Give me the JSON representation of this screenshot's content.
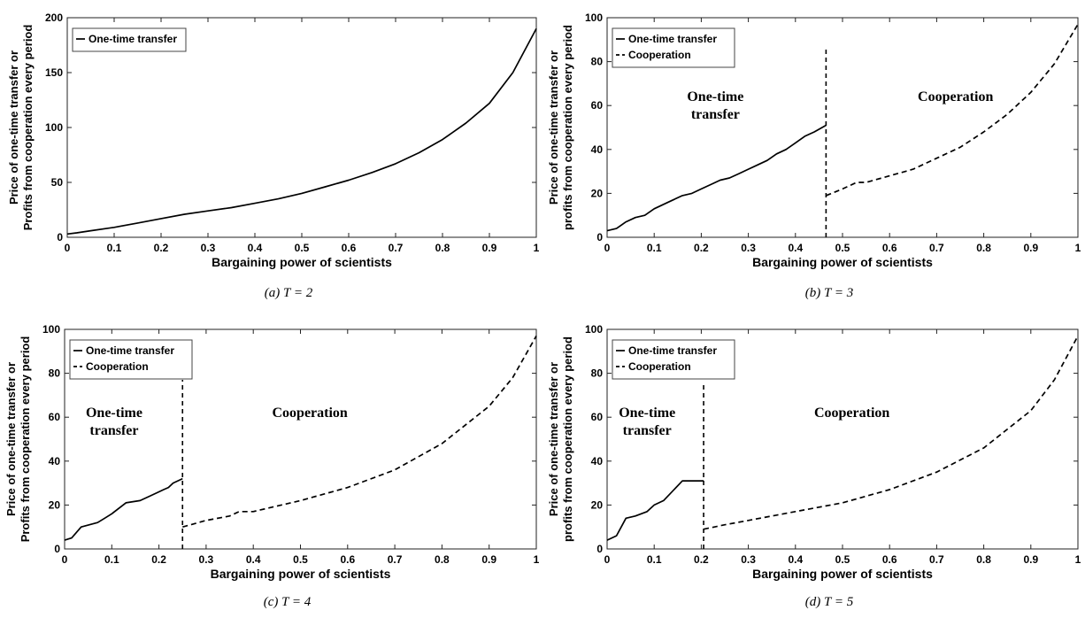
{
  "chart_data": [
    {
      "type": "line",
      "caption": "(a) T = 2",
      "xlabel": "Bargaining power of scientists",
      "ylabel_lines": [
        "Price of one-time transfer or",
        "Profits from cooperation every period"
      ],
      "xlim": [
        0,
        1
      ],
      "ylim": [
        0,
        200
      ],
      "xticks": [
        "0",
        "0.1",
        "0.2",
        "0.3",
        "0.4",
        "0.5",
        "0.6",
        "0.7",
        "0.8",
        "0.9",
        "1"
      ],
      "yticks": [
        "0",
        "50",
        "100",
        "150",
        "200"
      ],
      "legend": {
        "position": "top-left"
      },
      "annotations": [],
      "series": [
        {
          "name": "One-time transfer",
          "style": "solid",
          "x": [
            0,
            0.02,
            0.05,
            0.1,
            0.15,
            0.2,
            0.25,
            0.3,
            0.35,
            0.4,
            0.45,
            0.5,
            0.55,
            0.6,
            0.65,
            0.7,
            0.75,
            0.8,
            0.85,
            0.9,
            0.95,
            1.0
          ],
          "y": [
            3,
            4,
            6,
            9,
            13,
            17,
            21,
            24,
            27,
            31,
            35,
            40,
            46,
            52,
            59,
            67,
            77,
            89,
            104,
            122,
            150,
            190
          ]
        }
      ]
    },
    {
      "type": "line",
      "caption": "(b) T = 3",
      "xlabel": "Bargaining power of scientists",
      "ylabel_lines": [
        "Price of one-time transfer or",
        "profits from cooperation every period"
      ],
      "xlim": [
        0,
        1
      ],
      "ylim": [
        0,
        100
      ],
      "xticks": [
        "0",
        "0.1",
        "0.2",
        "0.3",
        "0.4",
        "0.5",
        "0.6",
        "0.7",
        "0.8",
        "0.9",
        "1"
      ],
      "yticks": [
        "0",
        "20",
        "40",
        "60",
        "80",
        "100"
      ],
      "legend": {
        "position": "top-left"
      },
      "annotations": [
        {
          "lines": [
            "One-time",
            "transfer"
          ],
          "x": 0.23,
          "y": 62
        },
        {
          "lines": [
            "Cooperation"
          ],
          "x": 0.74,
          "y": 62
        }
      ],
      "vline": {
        "x": 0.465,
        "y": [
          0,
          87
        ]
      },
      "series": [
        {
          "name": "One-time transfer",
          "style": "solid",
          "x": [
            0,
            0.02,
            0.04,
            0.06,
            0.08,
            0.1,
            0.12,
            0.14,
            0.16,
            0.18,
            0.2,
            0.22,
            0.24,
            0.26,
            0.28,
            0.3,
            0.32,
            0.34,
            0.36,
            0.38,
            0.4,
            0.42,
            0.44,
            0.465
          ],
          "y": [
            3,
            4,
            7,
            9,
            10,
            13,
            15,
            17,
            19,
            20,
            22,
            24,
            26,
            27,
            29,
            31,
            33,
            35,
            38,
            40,
            43,
            46,
            48,
            51
          ]
        },
        {
          "name": "Cooperation",
          "style": "dashed",
          "x": [
            0.465,
            0.5,
            0.53,
            0.55,
            0.6,
            0.65,
            0.7,
            0.75,
            0.8,
            0.85,
            0.9,
            0.95,
            1.0
          ],
          "y": [
            19,
            22,
            25,
            25,
            28,
            31,
            36,
            41,
            48,
            56,
            66,
            79,
            97
          ]
        }
      ]
    },
    {
      "type": "line",
      "caption": "(c) T = 4",
      "xlabel": "Bargaining power of scientists",
      "ylabel_lines": [
        "Price of one-time transfer or",
        "Profits from cooperation every period"
      ],
      "xlim": [
        0,
        1
      ],
      "ylim": [
        0,
        100
      ],
      "xticks": [
        "0",
        "0.1",
        "0.2",
        "0.3",
        "0.4",
        "0.5",
        "0.6",
        "0.7",
        "0.8",
        "0.9",
        "1"
      ],
      "yticks": [
        "0",
        "20",
        "40",
        "60",
        "80",
        "100"
      ],
      "legend": {
        "position": "top-left"
      },
      "annotations": [
        {
          "lines": [
            "One-time",
            "transfer"
          ],
          "x": 0.105,
          "y": 60
        },
        {
          "lines": [
            "Cooperation"
          ],
          "x": 0.52,
          "y": 60
        }
      ],
      "vline": {
        "x": 0.25,
        "y": [
          0,
          77
        ]
      },
      "series": [
        {
          "name": "One-time transfer",
          "style": "solid",
          "x": [
            0,
            0.015,
            0.035,
            0.07,
            0.085,
            0.1,
            0.13,
            0.16,
            0.18,
            0.2,
            0.21,
            0.22,
            0.23,
            0.25
          ],
          "y": [
            4,
            5,
            10,
            12,
            14,
            16,
            21,
            22,
            24,
            26,
            27,
            28,
            30,
            32
          ]
        },
        {
          "name": "Cooperation",
          "style": "dashed",
          "x": [
            0.25,
            0.3,
            0.35,
            0.37,
            0.4,
            0.5,
            0.6,
            0.7,
            0.8,
            0.9,
            0.95,
            1.0
          ],
          "y": [
            10,
            13,
            15,
            17,
            17,
            22,
            28,
            36,
            48,
            65,
            78,
            97
          ]
        }
      ]
    },
    {
      "type": "line",
      "caption": "(d) T = 5",
      "xlabel": "Bargaining power of scientists",
      "ylabel_lines": [
        "Price of one-time transfer or",
        "profits from cooperation every period"
      ],
      "xlim": [
        0,
        1
      ],
      "ylim": [
        0,
        100
      ],
      "xticks": [
        "0",
        "0.1",
        "0.2",
        "0.3",
        "0.4",
        "0.5",
        "0.6",
        "0.7",
        "0.8",
        "0.9",
        "1"
      ],
      "yticks": [
        "0",
        "20",
        "40",
        "60",
        "80",
        "100"
      ],
      "legend": {
        "position": "top-left"
      },
      "annotations": [
        {
          "lines": [
            "One-time",
            "transfer"
          ],
          "x": 0.085,
          "y": 60
        },
        {
          "lines": [
            "Cooperation"
          ],
          "x": 0.52,
          "y": 60
        }
      ],
      "vline": {
        "x": 0.205,
        "y": [
          0,
          75
        ]
      },
      "series": [
        {
          "name": "One-time transfer",
          "style": "solid",
          "x": [
            0,
            0.02,
            0.04,
            0.06,
            0.085,
            0.1,
            0.12,
            0.16,
            0.2,
            0.205
          ],
          "y": [
            4,
            6,
            14,
            15,
            17,
            20,
            22,
            31,
            31,
            31
          ]
        },
        {
          "name": "Cooperation",
          "style": "dashed",
          "x": [
            0.205,
            0.25,
            0.3,
            0.4,
            0.5,
            0.6,
            0.7,
            0.8,
            0.9,
            0.95,
            1.0
          ],
          "y": [
            9,
            11,
            13,
            17,
            21,
            27,
            35,
            46,
            63,
            77,
            97
          ]
        }
      ]
    }
  ]
}
